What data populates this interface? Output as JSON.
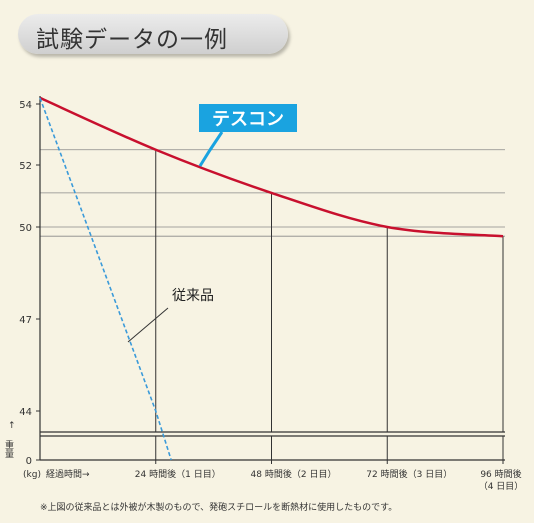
{
  "title": "試験データの一例",
  "footnote": "※上図の従来品とは外被が木製のもので、発砲スチロールを断熱材に使用したものです。",
  "colors": {
    "tescon": "#c8102e",
    "conventional": "#3a9ad9",
    "callout_bg": "#1aa3e0",
    "grid": "#555555"
  },
  "chart_data": {
    "type": "line",
    "y_unit": "(kg)",
    "ylabel": "重量",
    "xlabel": "経過時間→",
    "y_ticks": [
      54,
      52,
      50,
      47,
      44,
      0
    ],
    "x_ticks": [
      {
        "hours": 24,
        "label": "24 時間後（1 日目）"
      },
      {
        "hours": 48,
        "label": "48 時間後（2 日目）"
      },
      {
        "hours": 72,
        "label": "72 時間後（3 日目）"
      },
      {
        "hours": 96,
        "label": "96 時間後",
        "label2": "（4 日目）"
      }
    ],
    "series": [
      {
        "name": "テスコン",
        "x": [
          0,
          24,
          48,
          72,
          96
        ],
        "y": [
          54.2,
          52.5,
          51.1,
          50.0,
          49.7
        ]
      },
      {
        "name": "従来品",
        "x": [
          0,
          24,
          27.2
        ],
        "y": [
          54.2,
          44.0,
          0
        ]
      }
    ]
  }
}
